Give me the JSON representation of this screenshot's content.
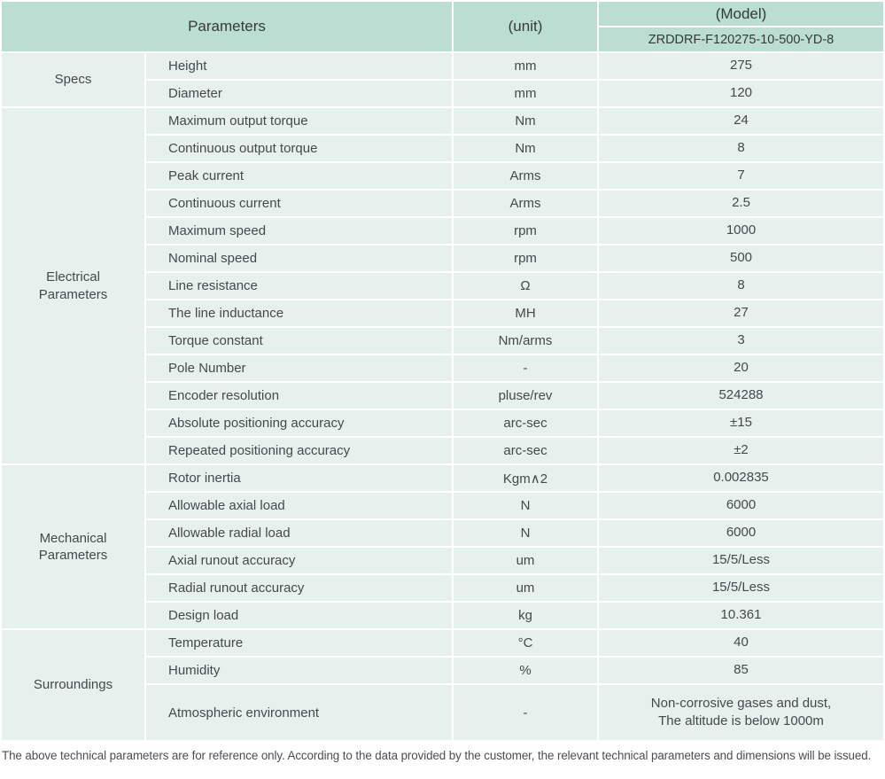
{
  "colors": {
    "header_bg": "#bcded2",
    "cell_bg": "#e6f1ee",
    "text": "#44494b",
    "header_text": "#333a3c"
  },
  "table": {
    "header": {
      "parameters_label": "Parameters",
      "unit_label": "(unit)",
      "model_label": "(Model)",
      "model_value": "ZRDDRF-F120275-10-500-YD-8"
    },
    "sections": [
      {
        "category": "Specs",
        "rows": [
          {
            "param": "Height",
            "unit": "mm",
            "value": "275"
          },
          {
            "param": "Diameter",
            "unit": "mm",
            "value": "120"
          }
        ]
      },
      {
        "category": "Electrical\nParameters",
        "rows": [
          {
            "param": "Maximum output torque",
            "unit": "Nm",
            "value": "24"
          },
          {
            "param": "Continuous output torque",
            "unit": "Nm",
            "value": "8"
          },
          {
            "param": "Peak current",
            "unit": "Arms",
            "value": "7"
          },
          {
            "param": "Continuous current",
            "unit": "Arms",
            "value": "2.5"
          },
          {
            "param": "Maximum speed",
            "unit": "rpm",
            "value": "1000"
          },
          {
            "param": "Nominal speed",
            "unit": "rpm",
            "value": "500"
          },
          {
            "param": "Line resistance",
            "unit": "Ω",
            "value": "8"
          },
          {
            "param": "The line inductance",
            "unit": "MH",
            "value": "27"
          },
          {
            "param": "Torque constant",
            "unit": "Nm/arms",
            "value": "3"
          },
          {
            "param": "Pole Number",
            "unit": "-",
            "value": "20"
          },
          {
            "param": "Encoder resolution",
            "unit": "pluse/rev",
            "value": "524288"
          },
          {
            "param": "Absolute positioning accuracy",
            "unit": "arc-sec",
            "value": "±15"
          },
          {
            "param": "Repeated positioning accuracy",
            "unit": "arc-sec",
            "value": "±2"
          }
        ]
      },
      {
        "category": "Mechanical\nParameters",
        "rows": [
          {
            "param": "Rotor inertia",
            "unit": "Kgm∧2",
            "value": "0.002835"
          },
          {
            "param": "Allowable axial load",
            "unit": "N",
            "value": "6000"
          },
          {
            "param": "Allowable radial load",
            "unit": "N",
            "value": "6000"
          },
          {
            "param": "Axial runout accuracy",
            "unit": "um",
            "value": "15/5/Less"
          },
          {
            "param": "Radial runout accuracy",
            "unit": "um",
            "value": "15/5/Less"
          },
          {
            "param": "Design load",
            "unit": "kg",
            "value": "10.361"
          }
        ]
      },
      {
        "category": "Surroundings",
        "rows": [
          {
            "param": "Temperature",
            "unit": "°C",
            "value": "40"
          },
          {
            "param": "Humidity",
            "unit": "%",
            "value": "85"
          },
          {
            "param": "Atmospheric environment",
            "unit": "-",
            "value": "Non-corrosive gases and dust,\nThe altitude is below 1000m",
            "tall": true
          }
        ]
      }
    ]
  },
  "footer": {
    "note": "The above technical parameters are for reference only. According to the data provided by the customer, the relevant technical parameters and dimensions will be issued."
  }
}
